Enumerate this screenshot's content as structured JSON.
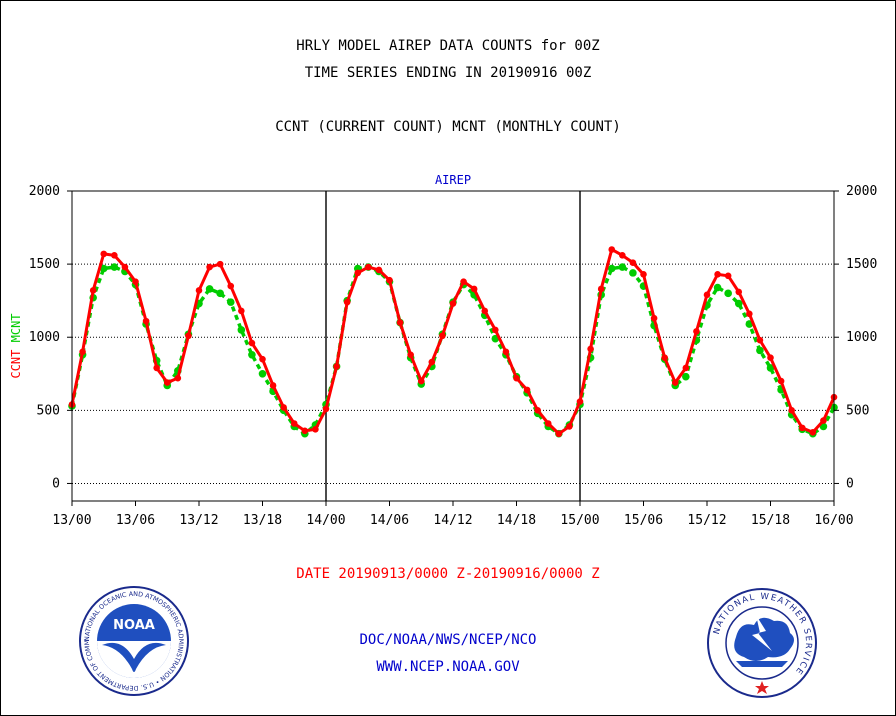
{
  "header": {
    "title_line1": "HRLY MODEL AIREP DATA COUNTS for 00Z",
    "title_line2": "TIME SERIES ENDING IN 20190916 00Z",
    "subtitle": "CCNT (CURRENT COUNT) MCNT (MONTHLY COUNT)"
  },
  "footer": {
    "date_range": "DATE 20190913/0000 Z-20190916/0000 Z",
    "org": "DOC/NOAA/NWS/NCEP/NCO",
    "url": "WWW.NCEP.NOAA.GOV"
  },
  "logos": {
    "noaa_text": "NOAA",
    "noaa_ring": "NATIONAL OCEANIC AND ATMOSPHERIC ADMINISTRATION • U.S. DEPARTMENT OF COMMERCE •",
    "nws_ring": "NATIONAL WEATHER SERVICE"
  },
  "colors": {
    "ccnt": "#ff0000",
    "mcnt": "#00cc00",
    "panel_label": "#0000cc",
    "footer_date": "#ff0000",
    "footer_link": "#0000cc"
  },
  "chart_data": {
    "type": "line",
    "title": "AIREP",
    "ylabel_parts": [
      {
        "text": "CCNT",
        "color": "#ff0000"
      },
      {
        "text": "MCNT",
        "color": "#00cc00"
      }
    ],
    "ylim": [
      -120,
      2000
    ],
    "yticks": [
      0,
      500,
      1000,
      1500,
      2000
    ],
    "xlim": [
      0,
      72
    ],
    "xticks": [
      0,
      6,
      12,
      18,
      24,
      30,
      36,
      42,
      48,
      54,
      60,
      66,
      72
    ],
    "xtick_labels": [
      "13/00",
      "13/06",
      "13/12",
      "13/18",
      "14/00",
      "14/06",
      "14/12",
      "14/18",
      "15/00",
      "15/06",
      "15/12",
      "15/18",
      "16/00"
    ],
    "day_dividers": [
      24,
      48
    ],
    "grid": "dotted horizontal at 500, 1000, 1500",
    "x_units": "hours since 13/00",
    "series": [
      {
        "name": "CCNT",
        "color": "#ff0000",
        "values": [
          540,
          900,
          1320,
          1570,
          1560,
          1480,
          1380,
          1110,
          790,
          690,
          720,
          1010,
          1320,
          1480,
          1500,
          1350,
          1180,
          960,
          850,
          670,
          520,
          410,
          360,
          370,
          510,
          800,
          1240,
          1440,
          1480,
          1460,
          1390,
          1100,
          880,
          700,
          830,
          1010,
          1230,
          1380,
          1330,
          1180,
          1050,
          900,
          720,
          640,
          500,
          410,
          340,
          390,
          560,
          920,
          1330,
          1600,
          1560,
          1510,
          1430,
          1130,
          860,
          690,
          790,
          1040,
          1290,
          1430,
          1420,
          1310,
          1160,
          980,
          860,
          700,
          500,
          380,
          350,
          430,
          590
        ]
      },
      {
        "name": "MCNT",
        "color": "#00cc00",
        "values": [
          530,
          880,
          1270,
          1470,
          1480,
          1450,
          1360,
          1090,
          840,
          670,
          770,
          1020,
          1230,
          1330,
          1300,
          1240,
          1050,
          880,
          750,
          630,
          500,
          390,
          340,
          400,
          540,
          800,
          1250,
          1470,
          1480,
          1450,
          1380,
          1100,
          860,
          680,
          800,
          1020,
          1240,
          1360,
          1290,
          1150,
          990,
          880,
          730,
          620,
          480,
          390,
          340,
          400,
          540,
          860,
          1290,
          1470,
          1480,
          1440,
          1350,
          1080,
          850,
          670,
          730,
          980,
          1220,
          1340,
          1300,
          1230,
          1090,
          910,
          790,
          640,
          470,
          370,
          340,
          390,
          520
        ]
      }
    ]
  }
}
